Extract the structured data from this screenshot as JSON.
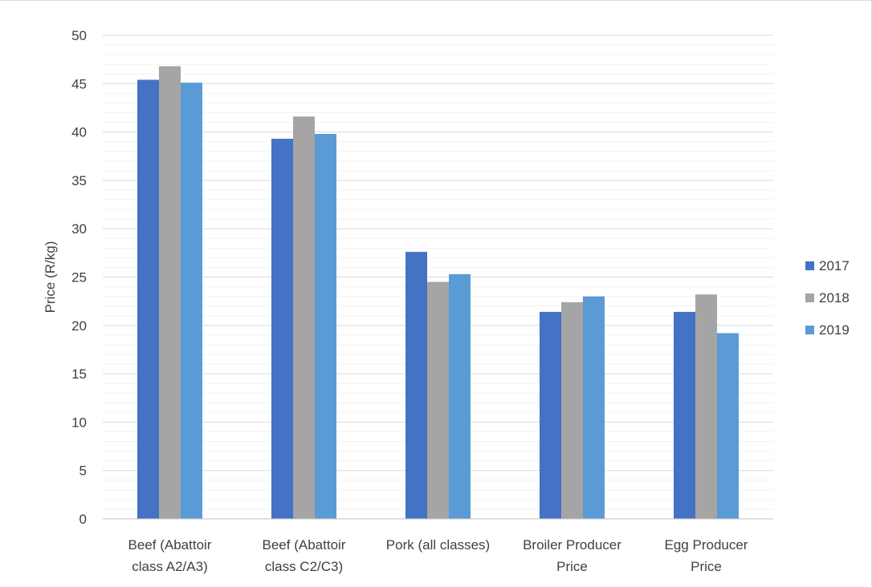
{
  "chart_data": {
    "type": "bar",
    "title": "",
    "xlabel": "",
    "ylabel": "Price (R/kg)",
    "ylim": [
      0,
      50
    ],
    "yticks": [
      0,
      5,
      10,
      15,
      20,
      25,
      30,
      35,
      40,
      45,
      50
    ],
    "grid": true,
    "legend_position": "right",
    "categories": [
      [
        "Beef (Abattoir",
        "class A2/A3)"
      ],
      [
        "Beef (Abattoir",
        "class C2/C3)"
      ],
      [
        "Pork (all classes)"
      ],
      [
        "Broiler  Producer",
        "Price"
      ],
      [
        "Egg Producer",
        "Price"
      ]
    ],
    "series": [
      {
        "name": "2017",
        "color": "#4472c4",
        "values": [
          45.4,
          39.3,
          27.6,
          21.4,
          21.4
        ]
      },
      {
        "name": "2018",
        "color": "#a5a5a5",
        "values": [
          46.8,
          41.6,
          24.5,
          22.4,
          23.2
        ]
      },
      {
        "name": "2019",
        "color": "#5b9bd5",
        "values": [
          45.1,
          39.8,
          25.3,
          23.0,
          19.2
        ]
      }
    ]
  }
}
